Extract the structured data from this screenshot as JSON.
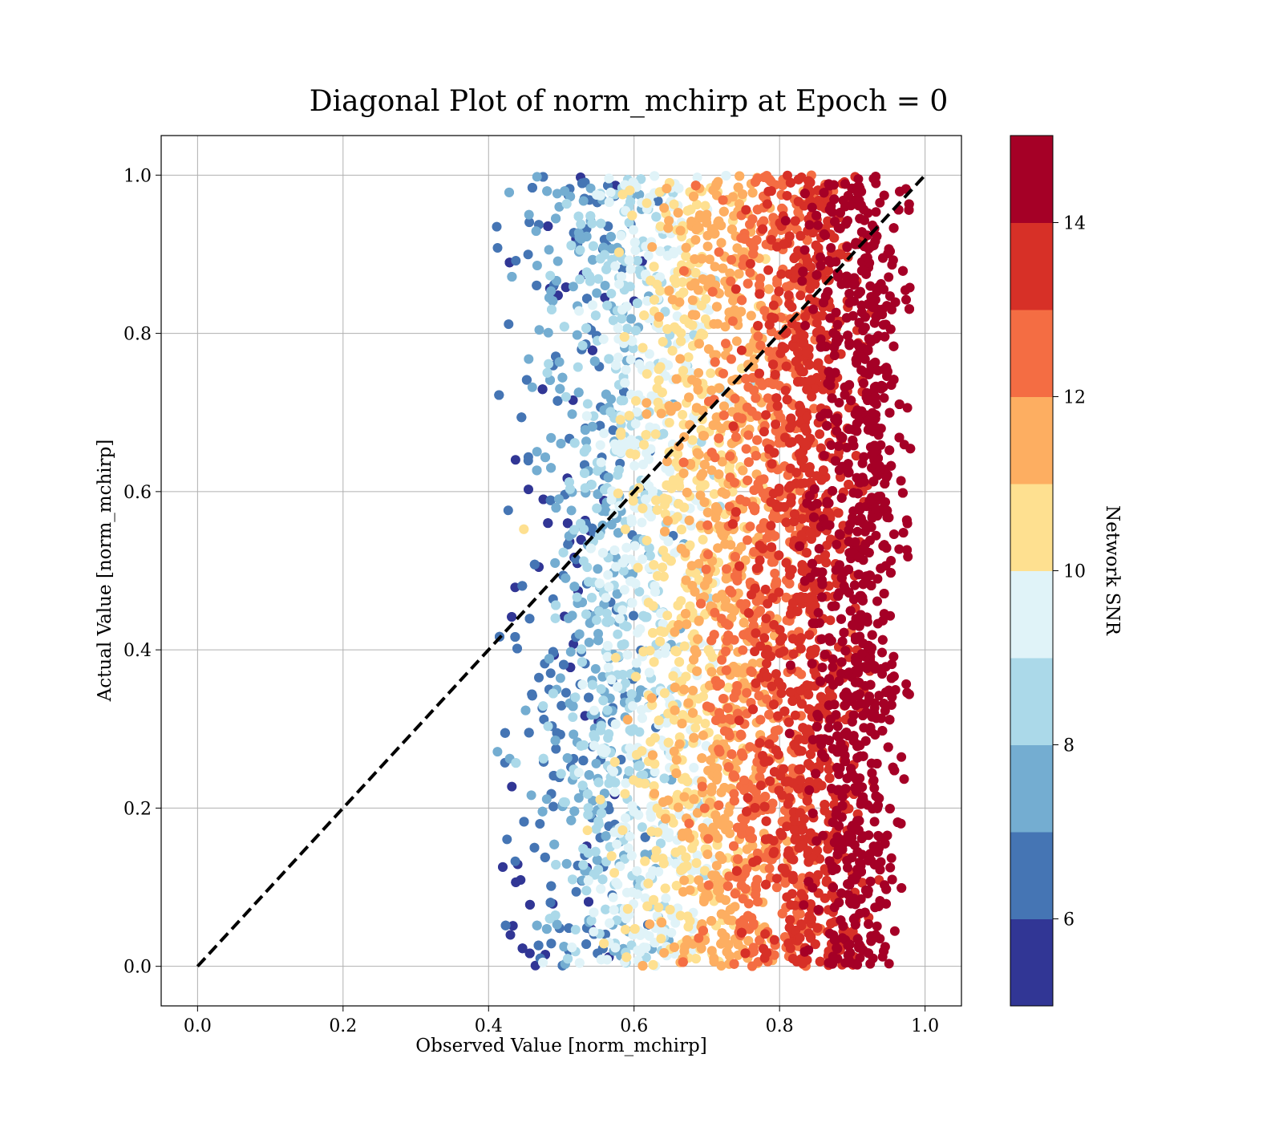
{
  "chart_data": {
    "type": "scatter",
    "title": "Diagonal Plot of norm_mchirp at Epoch = 0",
    "xlabel": "Observed Value [norm_mchirp]",
    "ylabel": "Actual Value [norm_mchirp]",
    "xlim": [
      -0.05,
      1.05
    ],
    "ylim": [
      -0.05,
      1.05
    ],
    "x_ticks": [
      0.0,
      0.2,
      0.4,
      0.6,
      0.8,
      1.0
    ],
    "y_ticks": [
      0.0,
      0.2,
      0.4,
      0.6,
      0.8,
      1.0
    ],
    "x_tick_labels": [
      "0.0",
      "0.2",
      "0.4",
      "0.6",
      "0.8",
      "1.0"
    ],
    "y_tick_labels": [
      "0.0",
      "0.2",
      "0.4",
      "0.6",
      "0.8",
      "1.0"
    ],
    "grid": true,
    "reference_line": {
      "x": [
        0.0,
        1.0
      ],
      "y": [
        0.0,
        1.0
      ],
      "style": "dashed",
      "color": "#000000"
    },
    "colorbar": {
      "label": "Network SNR",
      "range": [
        5,
        15
      ],
      "ticks": [
        6,
        8,
        10,
        12,
        14
      ],
      "tick_labels": [
        "6",
        "8",
        "10",
        "12",
        "14"
      ],
      "colors": [
        "#313695",
        "#4575b4",
        "#74add1",
        "#abd9e9",
        "#e0f3f8",
        "#fee090",
        "#fdae61",
        "#f46d43",
        "#d73027",
        "#a50026"
      ]
    },
    "point_distribution": {
      "observed_range": [
        0.41,
        0.98
      ],
      "actual_range": [
        0.0,
        1.0
      ],
      "trend": "observed value increases with Network SNR; high-SNR points cluster near observed 0.92-0.96",
      "snr_bins": [
        {
          "snr": [
            5,
            6
          ],
          "observed_center": 0.5
        },
        {
          "snr": [
            6,
            7
          ],
          "observed_center": 0.52
        },
        {
          "snr": [
            7,
            8
          ],
          "observed_center": 0.54
        },
        {
          "snr": [
            8,
            9
          ],
          "observed_center": 0.58
        },
        {
          "snr": [
            9,
            10
          ],
          "observed_center": 0.63
        },
        {
          "snr": [
            10,
            11
          ],
          "observed_center": 0.68
        },
        {
          "snr": [
            11,
            12
          ],
          "observed_center": 0.74
        },
        {
          "snr": [
            12,
            13
          ],
          "observed_center": 0.8
        },
        {
          "snr": [
            13,
            14
          ],
          "observed_center": 0.86
        },
        {
          "snr": [
            14,
            15
          ],
          "observed_center": 0.935
        }
      ]
    }
  }
}
